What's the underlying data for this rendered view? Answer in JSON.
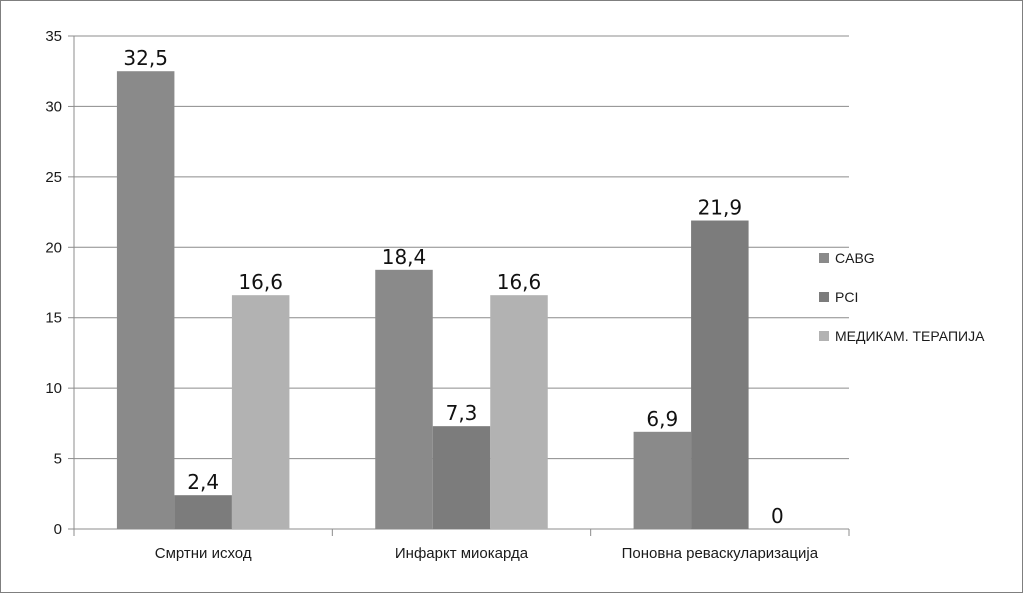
{
  "chart_data": {
    "type": "bar",
    "title": "",
    "xlabel": "",
    "ylabel": "",
    "ylim": [
      0,
      35
    ],
    "yticks": [
      0,
      5,
      10,
      15,
      20,
      25,
      30,
      35
    ],
    "grid": true,
    "legend_position": "right",
    "categories": [
      "Смртни исход",
      "Инфаркт миокарда",
      "Поновна реваскуларизација"
    ],
    "series": [
      {
        "name": "CABG",
        "values": [
          32.5,
          18.4,
          6.9
        ],
        "labels": [
          "32,5",
          "18,4",
          "6,9"
        ],
        "color": "#8a8a8a"
      },
      {
        "name": "PCI",
        "values": [
          2.4,
          7.3,
          21.9
        ],
        "labels": [
          "2,4",
          "7,3",
          "21,9"
        ],
        "color": "#7c7c7c"
      },
      {
        "name": "МЕДИКАМ. ТЕРАПИЈА",
        "values": [
          16.6,
          16.6,
          0
        ],
        "labels": [
          "16,6",
          "16,6",
          "0"
        ],
        "color": "#b2b2b2"
      }
    ]
  }
}
